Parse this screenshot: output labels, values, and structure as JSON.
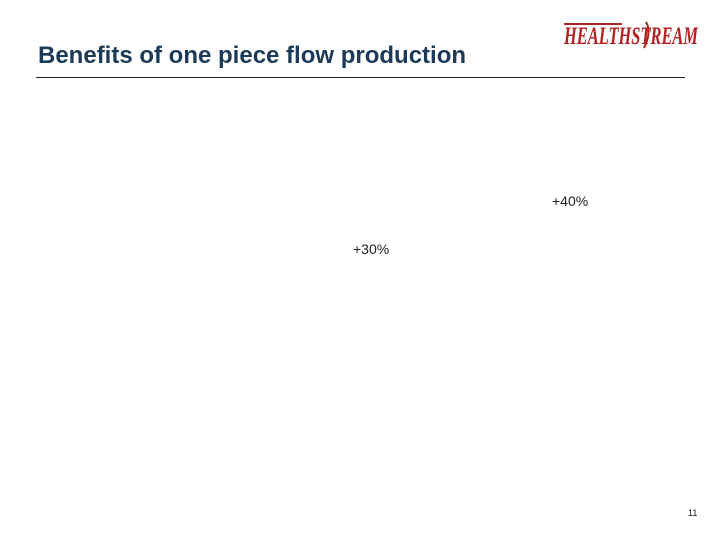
{
  "slide": {
    "title": "Benefits of one piece flow production",
    "page_number": "11"
  },
  "logo": {
    "text": "HEALTHSTREAM",
    "color": "#b22222"
  },
  "annotations": [
    {
      "label": "+40%"
    },
    {
      "label": "+30%"
    }
  ],
  "colors": {
    "title": "#1b3a57",
    "rule": "#222222",
    "logo": "#b22222"
  }
}
